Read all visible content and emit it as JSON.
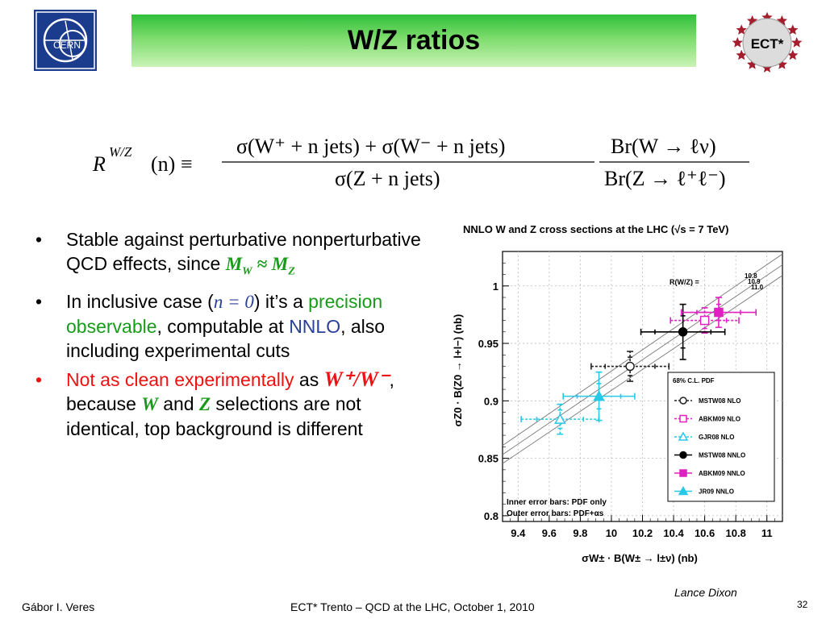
{
  "header": {
    "title": "W/Z ratios",
    "cern_logo_text": "CERN",
    "ect_logo_text": "ECT*"
  },
  "formula": {
    "lhs": "R",
    "lhs_sup": "W/Z",
    "lhs_arg": "(n) ≡",
    "num": "σ(W⁺ + n jets) + σ(W⁻ + n jets)",
    "den": "σ(Z + n jets)",
    "br_num": "Br(W → ℓν)",
    "br_den": "Br(Z → ℓ⁺ℓ⁻)"
  },
  "bullets": {
    "b1_text": "Stable against perturbative nonperturbative QCD effects, since ",
    "b1_math": "M",
    "b1_math_sub1": "W",
    "b1_math_mid": " ≈ M",
    "b1_math_sub2": "Z",
    "b2_pre": "In inclusive case (",
    "b2_math": "n = 0",
    "b2_post": ") it’s a ",
    "b2_green": "precision observable",
    "b2_mid": ",  computable at ",
    "b2_blue": "NNLO",
    "b2_end": ", also including experimental cuts",
    "b3_red": "Not as clean experimentally",
    "b3_as": " as ",
    "b3_math": "W⁺/W⁻",
    "b3_because": ",  because ",
    "b3_w": "W",
    "b3_and": "  and  ",
    "b3_z": "Z",
    "b3_end": " selections are not identical, top background is different"
  },
  "footer": {
    "left": "Gábor I. Veres",
    "center": "ECT* Trento – QCD at the LHC, October 1, 2010",
    "page": "32",
    "credit": "Lance Dixon"
  },
  "chart_data": {
    "type": "scatter",
    "title": "NNLO W and Z cross sections at the LHC (√s = 7 TeV)",
    "xlabel": "σW± · B(W± → l±ν)  (nb)",
    "ylabel": "σZ0 · B(Z0 → l+l−)  (nb)",
    "xlim": [
      9.3,
      11.1
    ],
    "ylim": [
      0.795,
      1.03
    ],
    "xticks": [
      "9.4",
      "9.6",
      "9.8",
      "10",
      "10.2",
      "10.4",
      "10.6",
      "10.8",
      "11"
    ],
    "yticks": [
      "0.8",
      "0.85",
      "0.9",
      "0.95",
      "1"
    ],
    "ratio_label": "R(W/Z) =",
    "ratio_lines": [
      "10.8",
      "10.9",
      "11.0"
    ],
    "grid": true,
    "legend_position": "lower-right",
    "legend_title": "68% C.L. PDF",
    "legend_note1": "Inner error bars: PDF only",
    "legend_note2": "Outer error bars: PDF+αs",
    "series": [
      {
        "name": "MSTW08 NLO",
        "x": 10.12,
        "y": 0.93,
        "color": "#222222",
        "filled": false,
        "marker": "circle",
        "dashed": true,
        "xerr_in": 0.16,
        "xerr_out": 0.25,
        "yerr_in": 0.008,
        "yerr_out": 0.013
      },
      {
        "name": "ABKM09 NLO",
        "x": 10.6,
        "y": 0.97,
        "color": "#e020c0",
        "filled": false,
        "marker": "square",
        "dashed": true,
        "xerr_in": 0.14,
        "xerr_out": 0.22,
        "yerr_in": 0.007,
        "yerr_out": 0.011
      },
      {
        "name": "GJR08 NLO",
        "x": 9.67,
        "y": 0.884,
        "color": "#28c8e8",
        "filled": false,
        "marker": "triangle",
        "dashed": true,
        "xerr_in": 0.15,
        "xerr_out": 0.25,
        "yerr_in": 0.008,
        "yerr_out": 0.013
      },
      {
        "name": "MSTW08 NNLO",
        "x": 10.46,
        "y": 0.96,
        "color": "#000000",
        "filled": true,
        "marker": "circle",
        "dashed": false,
        "xerr_in": 0.18,
        "xerr_out": 0.27,
        "yerr_in": 0.014,
        "yerr_out": 0.024
      },
      {
        "name": "ABKM09 NNLO",
        "x": 10.69,
        "y": 0.977,
        "color": "#e020c0",
        "filled": true,
        "marker": "square",
        "dashed": false,
        "xerr_in": 0.14,
        "xerr_out": 0.24,
        "yerr_in": 0.007,
        "yerr_out": 0.013
      },
      {
        "name": "JR09 NNLO",
        "x": 9.92,
        "y": 0.904,
        "color": "#28c8e8",
        "filled": true,
        "marker": "triangle",
        "dashed": false,
        "xerr_in": 0.14,
        "xerr_out": 0.23,
        "yerr_in": 0.011,
        "yerr_out": 0.021
      }
    ]
  },
  "colors": {
    "title_bar_top": "#2fbf3a",
    "title_bar_bottom": "#c9f3b6",
    "green_text": "#1a9a1a",
    "blue_text": "#2a3f9a",
    "red_text": "#ee1111",
    "cern_blue": "#1b3c8c",
    "ect_star": "#a51d2d"
  }
}
